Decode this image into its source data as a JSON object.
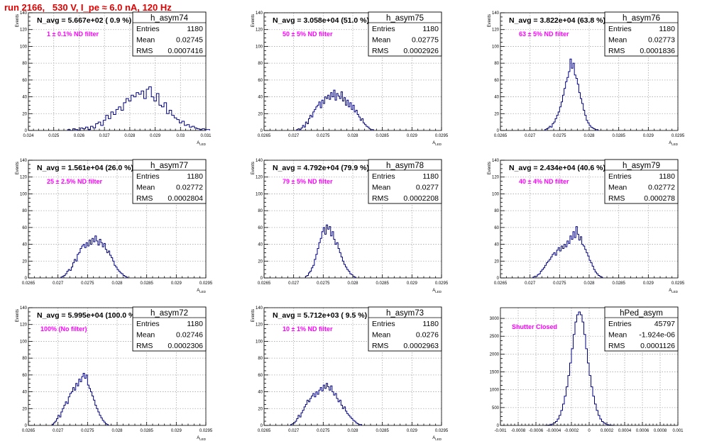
{
  "header": {
    "title": "run 2166,   530 V, I_pe ≈ 6.0 nA, 120 Hz"
  },
  "stat_labels": {
    "entries": "Entries",
    "mean": "Mean",
    "rms": "RMS"
  },
  "colors": {
    "title": "#e00000",
    "histogram": "#000080",
    "annotation": "#ff00ff"
  },
  "chart_data": [
    {
      "type": "histogram",
      "name": "h_asym74",
      "title": "N_avg = 5.667e+02 ( 0.9 %)",
      "annotation": "1 ± 0.1% ND filter",
      "ylabel": "Events",
      "xlabel": "A_LED",
      "stats": {
        "entries": "1180",
        "mean": "0.02745",
        "rms": "0.0007416"
      },
      "xlim": [
        0.024,
        0.031
      ],
      "ylim": [
        0,
        140
      ],
      "xticks": [
        0.024,
        0.025,
        0.026,
        0.027,
        0.028,
        0.029,
        0.03,
        0.031
      ],
      "xtick_labels": [
        "0.024",
        "0.025",
        "0.026",
        "0.027",
        "0.028",
        "0.029",
        "0.03",
        "0.031"
      ],
      "yticks": [
        0,
        20,
        40,
        60,
        80,
        100,
        120,
        140
      ],
      "bins": {
        "start": 0.02555,
        "width": 0.0001,
        "counts": [
          1,
          0,
          2,
          1,
          0,
          3,
          2,
          4,
          1,
          5,
          3,
          8,
          10,
          6,
          12,
          18,
          14,
          22,
          19,
          25,
          28,
          24,
          33,
          38,
          35,
          42,
          40,
          45,
          43,
          47,
          38,
          49,
          52,
          40,
          35,
          44,
          30,
          28,
          33,
          20,
          24,
          18,
          15,
          13,
          9,
          11,
          6,
          7,
          4,
          5,
          3,
          2,
          1,
          2,
          1,
          1
        ]
      }
    },
    {
      "type": "histogram",
      "name": "h_asym75",
      "title": "N_avg = 3.058e+04 (51.0 %)",
      "annotation": "50 ± 5% ND filter",
      "ylabel": "Events",
      "xlabel": "A_LED",
      "stats": {
        "entries": "1180",
        "mean": "0.02775",
        "rms": "0.0002926"
      },
      "xlim": [
        0.0265,
        0.0295
      ],
      "ylim": [
        0,
        140
      ],
      "xticks": [
        0.0265,
        0.027,
        0.0275,
        0.028,
        0.0285,
        0.029,
        0.0295
      ],
      "xtick_labels": [
        "0.0265",
        "0.027",
        "0.0275",
        "0.028",
        "0.0285",
        "0.029",
        "0.0295"
      ],
      "yticks": [
        0,
        20,
        40,
        60,
        80,
        100,
        120,
        140
      ],
      "bins": {
        "start": 0.02705,
        "width": 2.5e-05,
        "counts": [
          1,
          2,
          1,
          3,
          6,
          4,
          10,
          8,
          14,
          18,
          16,
          22,
          25,
          28,
          30,
          34,
          27,
          36,
          32,
          40,
          38,
          42,
          37,
          45,
          40,
          48,
          36,
          44,
          41,
          38,
          46,
          35,
          39,
          30,
          36,
          28,
          33,
          25,
          30,
          22,
          24,
          19,
          16,
          12,
          14,
          9,
          7,
          5,
          4,
          2,
          1,
          1
        ]
      }
    },
    {
      "type": "histogram",
      "name": "h_asym76",
      "title": "N_avg = 3.822e+04 (63.8 %)",
      "annotation": "63 ± 5% ND filter",
      "ylabel": "Events",
      "xlabel": "A_LED",
      "stats": {
        "entries": "1180",
        "mean": "0.02773",
        "rms": "0.0001836"
      },
      "xlim": [
        0.0265,
        0.0295
      ],
      "ylim": [
        0,
        140
      ],
      "xticks": [
        0.0265,
        0.027,
        0.0275,
        0.028,
        0.0285,
        0.029,
        0.0295
      ],
      "xtick_labels": [
        "0.0265",
        "0.027",
        "0.0275",
        "0.028",
        "0.0285",
        "0.029",
        "0.0295"
      ],
      "yticks": [
        0,
        20,
        40,
        60,
        80,
        100,
        120,
        140
      ],
      "bins": {
        "start": 0.02725,
        "width": 2.5e-05,
        "counts": [
          1,
          2,
          3,
          5,
          4,
          8,
          10,
          14,
          18,
          22,
          28,
          34,
          42,
          50,
          58,
          63,
          70,
          85,
          74,
          80,
          66,
          62,
          55,
          45,
          38,
          32,
          24,
          18,
          12,
          9,
          6,
          4,
          3,
          2,
          1,
          1
        ]
      }
    },
    {
      "type": "histogram",
      "name": "h_asym77",
      "title": "N_avg = 1.561e+04 (26.0 %)",
      "annotation": "25 ± 2.5% ND filter",
      "ylabel": "Events",
      "xlabel": "A_LED",
      "stats": {
        "entries": "1180",
        "mean": "0.02772",
        "rms": "0.0002804"
      },
      "xlim": [
        0.0265,
        0.0295
      ],
      "ylim": [
        0,
        140
      ],
      "xticks": [
        0.0265,
        0.027,
        0.0275,
        0.028,
        0.0285,
        0.029,
        0.0295
      ],
      "xtick_labels": [
        "0.0265",
        "0.027",
        "0.0275",
        "0.028",
        "0.0285",
        "0.029",
        "0.0295"
      ],
      "yticks": [
        0,
        20,
        40,
        60,
        80,
        100,
        120,
        140
      ],
      "bins": {
        "start": 0.02705,
        "width": 2.5e-05,
        "counts": [
          1,
          2,
          3,
          5,
          8,
          10,
          9,
          13,
          18,
          22,
          20,
          28,
          30,
          35,
          38,
          40,
          36,
          42,
          38,
          45,
          40,
          47,
          43,
          50,
          44,
          39,
          46,
          42,
          37,
          41,
          34,
          30,
          32,
          27,
          24,
          20,
          15,
          13,
          10,
          8,
          6,
          5,
          3,
          2,
          1
        ]
      }
    },
    {
      "type": "histogram",
      "name": "h_asym78",
      "title": "N_avg = 4.792e+04 (79.9 %)",
      "annotation": "79 ± 5% ND filter",
      "ylabel": "Events",
      "xlabel": "A_LED",
      "stats": {
        "entries": "1180",
        "mean": "0.0277",
        "rms": "0.0002208"
      },
      "xlim": [
        0.0265,
        0.0295
      ],
      "ylim": [
        0,
        140
      ],
      "xticks": [
        0.0265,
        0.027,
        0.0275,
        0.028,
        0.0285,
        0.029,
        0.0295
      ],
      "xtick_labels": [
        "0.0265",
        "0.027",
        "0.0275",
        "0.028",
        "0.0285",
        "0.029",
        "0.0295"
      ],
      "yticks": [
        0,
        20,
        40,
        60,
        80,
        100,
        120,
        140
      ],
      "bins": {
        "start": 0.0272,
        "width": 2.5e-05,
        "counts": [
          2,
          3,
          6,
          8,
          12,
          15,
          22,
          28,
          35,
          42,
          47,
          55,
          60,
          52,
          63,
          58,
          61,
          50,
          55,
          46,
          40,
          42,
          35,
          30,
          25,
          20,
          16,
          13,
          10,
          8,
          5,
          4,
          2,
          1
        ]
      }
    },
    {
      "type": "histogram",
      "name": "h_asym79",
      "title": "N_avg = 2.434e+04 (40.6 %)",
      "annotation": "40 ± 4% ND filter",
      "ylabel": "Events",
      "xlabel": "A_LED",
      "stats": {
        "entries": "1180",
        "mean": "0.02772",
        "rms": "0.000278"
      },
      "xlim": [
        0.0265,
        0.0295
      ],
      "ylim": [
        0,
        140
      ],
      "xticks": [
        0.0265,
        0.027,
        0.0275,
        0.028,
        0.0285,
        0.029,
        0.0295
      ],
      "xtick_labels": [
        "0.0265",
        "0.027",
        "0.0275",
        "0.028",
        "0.0285",
        "0.029",
        "0.0295"
      ],
      "yticks": [
        0,
        20,
        40,
        60,
        80,
        100,
        120,
        140
      ],
      "bins": {
        "start": 0.02705,
        "width": 2.5e-05,
        "counts": [
          1,
          2,
          2,
          4,
          5,
          8,
          10,
          12,
          15,
          18,
          20,
          22,
          25,
          28,
          30,
          27,
          33,
          36,
          32,
          38,
          35,
          40,
          37,
          44,
          41,
          50,
          46,
          55,
          48,
          61,
          52,
          45,
          49,
          40,
          38,
          34,
          30,
          26,
          21,
          18,
          14,
          10,
          7,
          5,
          3,
          2,
          1
        ]
      }
    },
    {
      "type": "histogram",
      "name": "h_asym72",
      "title": "N_avg = 5.995e+04 (100.0 %)",
      "annotation": "100% (No filter)",
      "ylabel": "Events",
      "xlabel": "A_LED",
      "stats": {
        "entries": "1180",
        "mean": "0.02746",
        "rms": "0.0002306"
      },
      "xlim": [
        0.0265,
        0.0295
      ],
      "ylim": [
        0,
        140
      ],
      "xticks": [
        0.0265,
        0.027,
        0.0275,
        0.028,
        0.0285,
        0.029,
        0.0295
      ],
      "xtick_labels": [
        "0.0265",
        "0.027",
        "0.0275",
        "0.028",
        "0.0285",
        "0.029",
        "0.0295"
      ],
      "yticks": [
        0,
        20,
        40,
        60,
        80,
        100,
        120,
        140
      ],
      "bins": {
        "start": 0.0269,
        "width": 2.5e-05,
        "counts": [
          1,
          3,
          5,
          8,
          12,
          10,
          16,
          20,
          24,
          28,
          26,
          34,
          38,
          40,
          45,
          42,
          50,
          47,
          55,
          52,
          58,
          62,
          56,
          60,
          48,
          44,
          40,
          35,
          30,
          24,
          20,
          16,
          12,
          9,
          6,
          4,
          2,
          1
        ]
      }
    },
    {
      "type": "histogram",
      "name": "h_asym73",
      "title": "N_avg = 5.712e+03 ( 9.5 %)",
      "annotation": "10 ± 1% ND filter",
      "ylabel": "Events",
      "xlabel": "A_LED",
      "stats": {
        "entries": "1180",
        "mean": "0.0276",
        "rms": "0.0002963"
      },
      "xlim": [
        0.0265,
        0.0295
      ],
      "ylim": [
        0,
        140
      ],
      "xticks": [
        0.0265,
        0.027,
        0.0275,
        0.028,
        0.0285,
        0.029,
        0.0295
      ],
      "xtick_labels": [
        "0.0265",
        "0.027",
        "0.0275",
        "0.028",
        "0.0285",
        "0.029",
        "0.0295"
      ],
      "yticks": [
        0,
        20,
        40,
        60,
        80,
        100,
        120,
        140
      ],
      "bins": {
        "start": 0.02695,
        "width": 2.5e-05,
        "counts": [
          1,
          2,
          3,
          5,
          8,
          12,
          10,
          15,
          18,
          22,
          25,
          30,
          28,
          32,
          35,
          38,
          34,
          40,
          37,
          42,
          45,
          41,
          48,
          44,
          50,
          46,
          42,
          47,
          40,
          36,
          38,
          32,
          28,
          30,
          24,
          20,
          22,
          17,
          14,
          12,
          10,
          8,
          6,
          5,
          3,
          2,
          1,
          1
        ]
      }
    },
    {
      "type": "histogram",
      "name": "hPed_asym",
      "title": "",
      "annotation": "Shutter Closed",
      "ylabel": "",
      "xlabel": "",
      "stats": {
        "entries": "45797",
        "mean": "-1.924e-06",
        "rms": "0.0001126"
      },
      "xlim": [
        -0.001,
        0.001
      ],
      "ylim": [
        0,
        3300
      ],
      "xticks": [
        -0.001,
        -0.0008,
        -0.0006,
        -0.0004,
        -0.0002,
        0,
        0.0002,
        0.0004,
        0.0006,
        0.0008,
        0.001
      ],
      "xtick_labels": [
        "-0.001",
        "-0.0008",
        "-0.0006",
        "-0.0004",
        "-0.0002",
        "0",
        "0.0002",
        "0.0004",
        "0.0006",
        "0.0008",
        "0.001"
      ],
      "yticks": [
        0,
        500,
        1000,
        1500,
        2000,
        2500,
        3000
      ],
      "bins": {
        "start": -0.0005,
        "width": 2e-05,
        "counts": [
          2,
          5,
          10,
          20,
          40,
          70,
          110,
          180,
          280,
          420,
          600,
          820,
          1080,
          1400,
          1750,
          2150,
          2550,
          2900,
          3100,
          3180,
          3100,
          2900,
          2550,
          2150,
          1750,
          1400,
          1080,
          820,
          600,
          420,
          280,
          180,
          110,
          70,
          40,
          20,
          10,
          5,
          2
        ]
      }
    }
  ]
}
